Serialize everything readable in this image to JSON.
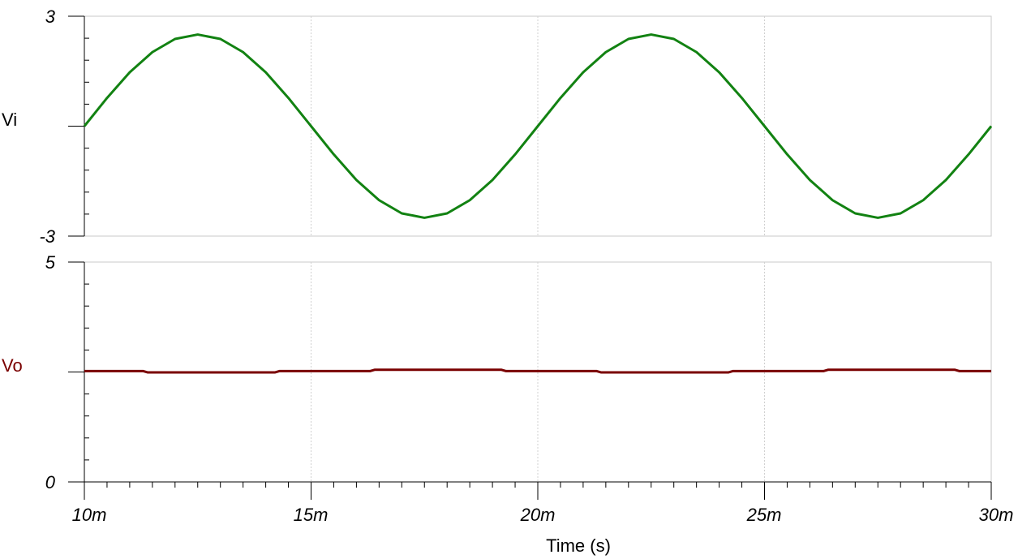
{
  "chart_data": {
    "type": "line",
    "xlabel": "Time (s)",
    "x_ticks": [
      "10m",
      "15m",
      "20m",
      "25m",
      "30m"
    ],
    "xlim": [
      0.01,
      0.03
    ],
    "panels": [
      {
        "ylabel": "Vi",
        "ylabel_color": "#000000",
        "series_color": "#128212",
        "ylim": [
          -3,
          3
        ],
        "y_ticks": [
          "3",
          "-3"
        ],
        "x": [
          0.01,
          0.0105,
          0.011,
          0.0115,
          0.012,
          0.0125,
          0.013,
          0.0135,
          0.014,
          0.0145,
          0.015,
          0.0155,
          0.016,
          0.0165,
          0.017,
          0.0175,
          0.018,
          0.0185,
          0.019,
          0.0195,
          0.02,
          0.0205,
          0.021,
          0.0215,
          0.022,
          0.0225,
          0.023,
          0.0235,
          0.024,
          0.0245,
          0.025,
          0.0255,
          0.026,
          0.0265,
          0.027,
          0.0275,
          0.028,
          0.0285,
          0.029,
          0.0295,
          0.03
        ],
        "y": [
          0.0,
          0.77,
          1.47,
          2.02,
          2.38,
          2.5,
          2.38,
          2.02,
          1.47,
          0.77,
          0.0,
          -0.77,
          -1.47,
          -2.02,
          -2.38,
          -2.5,
          -2.38,
          -2.02,
          -1.47,
          -0.77,
          0.0,
          0.77,
          1.47,
          2.02,
          2.38,
          2.5,
          2.38,
          2.02,
          1.47,
          0.77,
          0.0,
          -0.77,
          -1.47,
          -2.02,
          -2.38,
          -2.5,
          -2.38,
          -2.02,
          -1.47,
          -0.77,
          0.0
        ]
      },
      {
        "ylabel": "Vo",
        "ylabel_color": "#7a0000",
        "series_color": "#7a0000",
        "ylim": [
          0,
          5
        ],
        "y_ticks": [
          "5",
          "0"
        ],
        "x": [
          0.01,
          0.0113,
          0.0114,
          0.0142,
          0.0143,
          0.0163,
          0.0164,
          0.0192,
          0.0193,
          0.0213,
          0.0214,
          0.0242,
          0.0243,
          0.0263,
          0.0264,
          0.0292,
          0.0293,
          0.03
        ],
        "y": [
          2.52,
          2.52,
          2.49,
          2.49,
          2.52,
          2.52,
          2.55,
          2.55,
          2.52,
          2.52,
          2.49,
          2.49,
          2.52,
          2.52,
          2.55,
          2.55,
          2.52,
          2.52
        ]
      }
    ]
  }
}
